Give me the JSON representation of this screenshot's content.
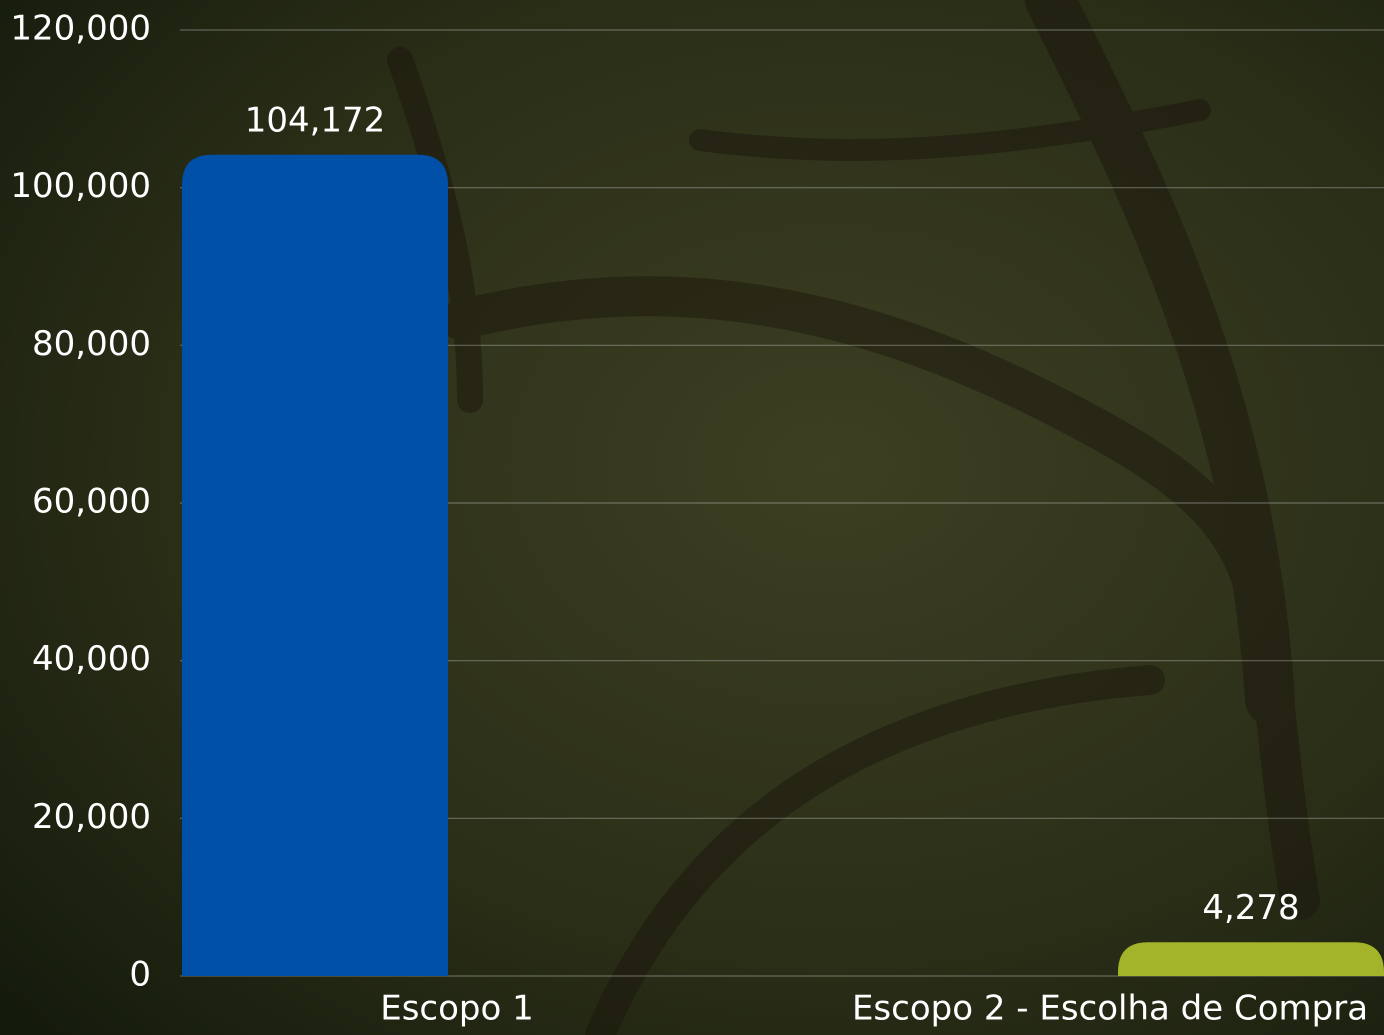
{
  "chart_data": {
    "type": "bar",
    "categories": [
      "Escopo 1",
      "Escopo 2 - Escolha de Compra"
    ],
    "values": [
      104172,
      4278
    ],
    "value_labels": [
      "104,172",
      "4,278"
    ],
    "colors": [
      "#0050a8",
      "#a3b42a"
    ],
    "ylim": [
      0,
      120000
    ],
    "yticks": [
      0,
      {
        "value": 20000,
        "label": "20,000"
      },
      {
        "value": 40000,
        "label": "40,000"
      },
      {
        "value": 60000,
        "label": "60,000"
      },
      {
        "value": 80000,
        "label": "80,000"
      },
      {
        "value": 100000,
        "label": "100,000"
      },
      {
        "value": 120000,
        "label": "120,000"
      }
    ],
    "grid": true
  }
}
